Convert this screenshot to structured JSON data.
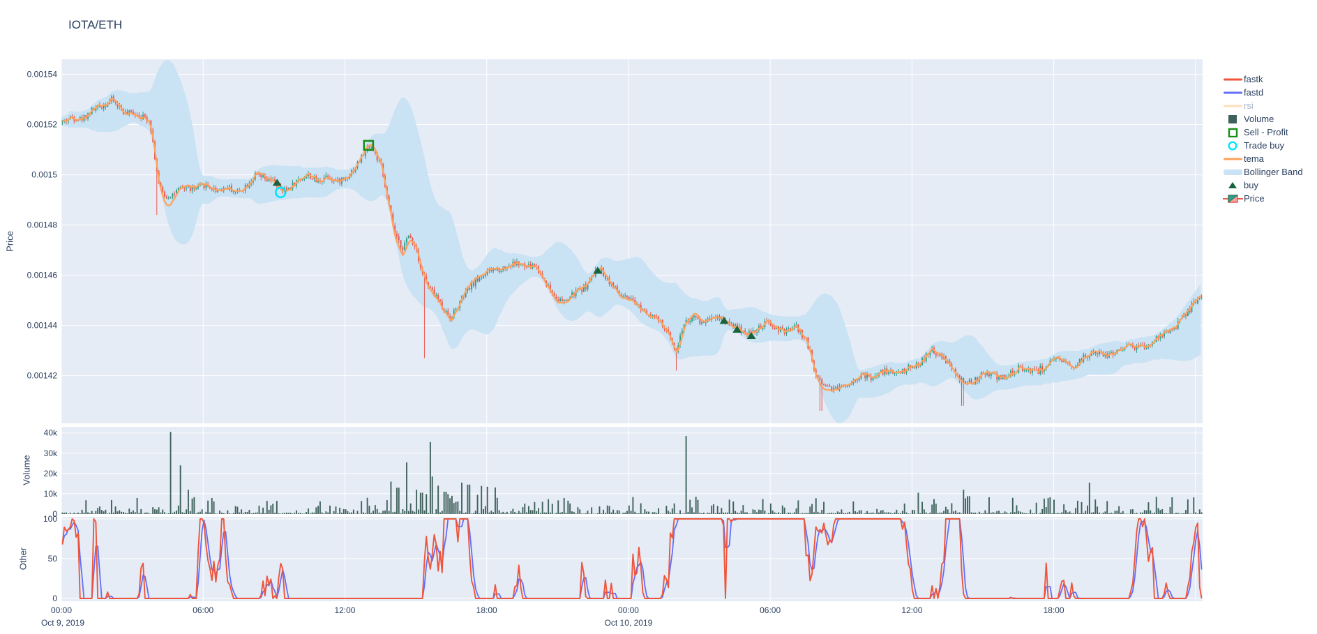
{
  "title": "IOTA/ETH",
  "axes": {
    "price": {
      "title": "Price",
      "ticks": [
        "0.00154",
        "0.00152",
        "0.0015",
        "0.00148",
        "0.00146",
        "0.00144",
        "0.00142"
      ],
      "tick_values": [
        0.00154,
        0.00152,
        0.0015,
        0.00148,
        0.00146,
        0.00144,
        0.00142
      ],
      "range": [
        0.001401,
        0.001546
      ]
    },
    "volume": {
      "title": "Volume",
      "ticks": [
        "40k",
        "30k",
        "20k",
        "10k",
        "0"
      ],
      "tick_values": [
        40000,
        30000,
        20000,
        10000,
        0
      ],
      "range": [
        0,
        43000
      ]
    },
    "other": {
      "title": "Other",
      "ticks": [
        "100",
        "50",
        "0"
      ],
      "tick_values": [
        100,
        50,
        0
      ],
      "range": [
        0,
        100
      ]
    },
    "x": {
      "tick_labels": [
        "00:00",
        "06:00",
        "12:00",
        "18:00",
        "00:00",
        "06:00",
        "12:00",
        "18:00"
      ],
      "date_labels": [
        {
          "text": "Oct 9, 2019",
          "tick_index": 0
        },
        {
          "text": "Oct 10, 2019",
          "tick_index": 4
        }
      ],
      "hours_per_tick": 6,
      "total_hours": 48.3
    }
  },
  "colors": {
    "text": "#2a3f5f",
    "plot_bg": "#e5ecf6",
    "grid": "#ffffff",
    "candle_up": "#2f9e89",
    "candle_down": "#e8564e",
    "tema": "#ffa15a",
    "bollinger": "#c9e2f4",
    "volume_bar": "#3f615b",
    "fastk": "#ef553b",
    "fastd": "#636efa",
    "buy_marker": "#17633c",
    "sell_profit_marker": "#168f16",
    "trade_buy_marker": "#00e5ff",
    "rsi_muted_swatch": "#ffd9ae",
    "muted_text": "#a9b4c7"
  },
  "legend": {
    "items": [
      {
        "id": "fastk",
        "label": "fastk",
        "type": "line",
        "color": "#ef553b",
        "muted": false
      },
      {
        "id": "fastd",
        "label": "fastd",
        "type": "line",
        "color": "#636efa",
        "muted": false
      },
      {
        "id": "rsi",
        "label": "rsi",
        "type": "line",
        "color": "#ffd9ae",
        "muted": true
      },
      {
        "id": "volume",
        "label": "Volume",
        "type": "square-fill",
        "color": "#3f615b",
        "muted": false
      },
      {
        "id": "sell-profit",
        "label": "Sell - Profit",
        "type": "square-open",
        "color": "#168f16",
        "muted": false
      },
      {
        "id": "trade-buy",
        "label": "Trade buy",
        "type": "circle-open",
        "color": "#00e5ff",
        "muted": false
      },
      {
        "id": "tema",
        "label": "tema",
        "type": "line",
        "color": "#ffa15a",
        "muted": false
      },
      {
        "id": "bollinger",
        "label": "Bollinger Band",
        "type": "band",
        "color": "#c9e2f4",
        "muted": false
      },
      {
        "id": "buy",
        "label": "buy",
        "type": "triangle",
        "color": "#17633c",
        "muted": false
      },
      {
        "id": "price",
        "label": "Price",
        "type": "candle",
        "color": "#2f9e89",
        "color2": "#e8564e",
        "muted": false
      }
    ]
  },
  "chart_data": [
    {
      "panel": "price",
      "type": "candlestick",
      "pair": "IOTA/ETH",
      "interval_minutes": 5,
      "x_start": "2019-10-09 00:00",
      "hours": 48.3,
      "ylim": [
        0.001401,
        0.001546
      ],
      "seed": 42,
      "price_anchors": [
        [
          0,
          0.001521
        ],
        [
          0.4,
          0.001523
        ],
        [
          0.8,
          0.001522
        ],
        [
          1.3,
          0.001526
        ],
        [
          1.8,
          0.001528
        ],
        [
          2.1,
          0.00153
        ],
        [
          2.4,
          0.001527
        ],
        [
          2.7,
          0.001524
        ],
        [
          3.0,
          0.001525
        ],
        [
          3.4,
          0.001523
        ],
        [
          3.7,
          0.001522
        ],
        [
          3.9,
          0.001508
        ],
        [
          4.1,
          0.001495
        ],
        [
          4.4,
          0.001491
        ],
        [
          4.8,
          0.001493
        ],
        [
          5.2,
          0.001495
        ],
        [
          5.6,
          0.001494
        ],
        [
          6.0,
          0.001496
        ],
        [
          6.5,
          0.001494
        ],
        [
          7.0,
          0.001495
        ],
        [
          7.4,
          0.001493
        ],
        [
          7.8,
          0.001496
        ],
        [
          8.2,
          0.0015
        ],
        [
          8.6,
          0.001498
        ],
        [
          9.0,
          0.001497
        ],
        [
          9.3,
          0.001493
        ],
        [
          9.6,
          0.001495
        ],
        [
          10.0,
          0.001498
        ],
        [
          10.4,
          0.0015
        ],
        [
          10.8,
          0.001497
        ],
        [
          11.2,
          0.0015
        ],
        [
          11.6,
          0.001497
        ],
        [
          12.0,
          0.001499
        ],
        [
          12.4,
          0.001503
        ],
        [
          12.8,
          0.001509
        ],
        [
          13.0,
          0.001512
        ],
        [
          13.2,
          0.001509
        ],
        [
          13.5,
          0.001503
        ],
        [
          13.8,
          0.001488
        ],
        [
          14.1,
          0.001475
        ],
        [
          14.4,
          0.001471
        ],
        [
          14.7,
          0.001476
        ],
        [
          15.0,
          0.00147
        ],
        [
          15.2,
          0.001462
        ],
        [
          15.5,
          0.001455
        ],
        [
          15.8,
          0.001452
        ],
        [
          16.1,
          0.001447
        ],
        [
          16.4,
          0.001443
        ],
        [
          16.7,
          0.001447
        ],
        [
          17.0,
          0.001452
        ],
        [
          17.4,
          0.001457
        ],
        [
          17.8,
          0.00146
        ],
        [
          18.2,
          0.001462
        ],
        [
          18.7,
          0.001463
        ],
        [
          19.2,
          0.001465
        ],
        [
          19.6,
          0.001463
        ],
        [
          20.0,
          0.001464
        ],
        [
          20.4,
          0.001458
        ],
        [
          20.8,
          0.001452
        ],
        [
          21.2,
          0.001449
        ],
        [
          21.7,
          0.001453
        ],
        [
          22.2,
          0.001456
        ],
        [
          22.7,
          0.001463
        ],
        [
          23.2,
          0.001457
        ],
        [
          23.6,
          0.001452
        ],
        [
          24.0,
          0.00145
        ],
        [
          24.5,
          0.001447
        ],
        [
          25.0,
          0.001444
        ],
        [
          25.4,
          0.00144
        ],
        [
          25.8,
          0.001434
        ],
        [
          26.0,
          0.00143
        ],
        [
          26.3,
          0.001441
        ],
        [
          26.7,
          0.001443
        ],
        [
          27.1,
          0.001441
        ],
        [
          27.5,
          0.001444
        ],
        [
          27.9,
          0.001443
        ],
        [
          28.2,
          0.001441
        ],
        [
          28.6,
          0.001439
        ],
        [
          29.0,
          0.001437
        ],
        [
          29.4,
          0.001438
        ],
        [
          29.8,
          0.001441
        ],
        [
          30.2,
          0.001439
        ],
        [
          30.6,
          0.001437
        ],
        [
          31.0,
          0.00144
        ],
        [
          31.5,
          0.001434
        ],
        [
          31.9,
          0.00142
        ],
        [
          32.3,
          0.001416
        ],
        [
          32.8,
          0.001415
        ],
        [
          33.3,
          0.001417
        ],
        [
          33.8,
          0.00142
        ],
        [
          34.3,
          0.001419
        ],
        [
          34.8,
          0.001422
        ],
        [
          35.3,
          0.001421
        ],
        [
          35.8,
          0.001423
        ],
        [
          36.3,
          0.001425
        ],
        [
          36.8,
          0.00143
        ],
        [
          37.4,
          0.001426
        ],
        [
          38.0,
          0.001418
        ],
        [
          38.5,
          0.001417
        ],
        [
          39.0,
          0.001421
        ],
        [
          39.8,
          0.001419
        ],
        [
          40.5,
          0.001423
        ],
        [
          41.3,
          0.001422
        ],
        [
          42.0,
          0.001426
        ],
        [
          42.8,
          0.001424
        ],
        [
          43.5,
          0.001429
        ],
        [
          44.3,
          0.001428
        ],
        [
          45.0,
          0.001432
        ],
        [
          45.8,
          0.001431
        ],
        [
          46.5,
          0.001436
        ],
        [
          47.0,
          0.001438
        ],
        [
          47.5,
          0.001444
        ],
        [
          48.0,
          0.00145
        ],
        [
          48.3,
          0.001453
        ]
      ],
      "wick_lows": [
        [
          4.0,
          0.001484
        ],
        [
          15.3,
          0.001427
        ],
        [
          26.0,
          0.001422
        ],
        [
          32.1,
          0.001406
        ],
        [
          38.1,
          0.001408
        ]
      ],
      "overlays": {
        "tema_period": 8,
        "bollinger_window": 24,
        "bollinger_k": 2.3
      },
      "markers": {
        "buy": [
          [
            9.13,
            0.001497
          ],
          [
            22.7,
            0.001462
          ],
          [
            28.05,
            0.001442
          ],
          [
            28.6,
            0.0014385
          ],
          [
            29.2,
            0.001436
          ]
        ],
        "trade_buy": [
          [
            9.28,
            0.001493
          ]
        ],
        "sell_profit": [
          [
            13.0,
            0.0015117
          ]
        ]
      }
    },
    {
      "panel": "volume",
      "type": "bar",
      "ylim": [
        0,
        43000
      ],
      "seed": 99,
      "spikes": [
        [
          4.6,
          40500
        ],
        [
          5.0,
          24000
        ],
        [
          5.3,
          12000
        ],
        [
          9.1,
          6500
        ],
        [
          12.9,
          8000
        ],
        [
          13.9,
          16000
        ],
        [
          14.2,
          13000
        ],
        [
          14.6,
          25500
        ],
        [
          15.0,
          12000
        ],
        [
          15.2,
          10500
        ],
        [
          15.6,
          35500
        ],
        [
          15.9,
          14000
        ],
        [
          16.2,
          11000
        ],
        [
          16.5,
          9000
        ],
        [
          16.9,
          15500
        ],
        [
          17.2,
          14500
        ],
        [
          17.6,
          9500
        ],
        [
          18.0,
          13500
        ],
        [
          18.4,
          8000
        ],
        [
          20.3,
          6000
        ],
        [
          21.5,
          5200
        ],
        [
          26.4,
          38500
        ],
        [
          26.6,
          7000
        ],
        [
          28.4,
          6200
        ],
        [
          30.0,
          5200
        ],
        [
          31.9,
          7800
        ],
        [
          32.2,
          6000
        ],
        [
          33.5,
          6200
        ],
        [
          36.2,
          10500
        ],
        [
          36.4,
          6000
        ],
        [
          38.15,
          12000
        ],
        [
          38.35,
          8800
        ],
        [
          40.2,
          8000
        ],
        [
          41.2,
          5600
        ],
        [
          43.5,
          15500
        ],
        [
          44.2,
          6400
        ],
        [
          46.0,
          5800
        ],
        [
          47.6,
          7200
        ],
        [
          47.9,
          8200
        ]
      ],
      "boost_ranges": [
        [
          13.5,
          18.6,
          2.2
        ],
        [
          18.6,
          20.2,
          1.6
        ]
      ]
    },
    {
      "panel": "other",
      "type": "line",
      "ylim": [
        0,
        100
      ],
      "seed": 1337,
      "series": [
        {
          "name": "fastk",
          "color": "#ef553b"
        },
        {
          "name": "fastd",
          "color": "#636efa"
        }
      ]
    }
  ]
}
